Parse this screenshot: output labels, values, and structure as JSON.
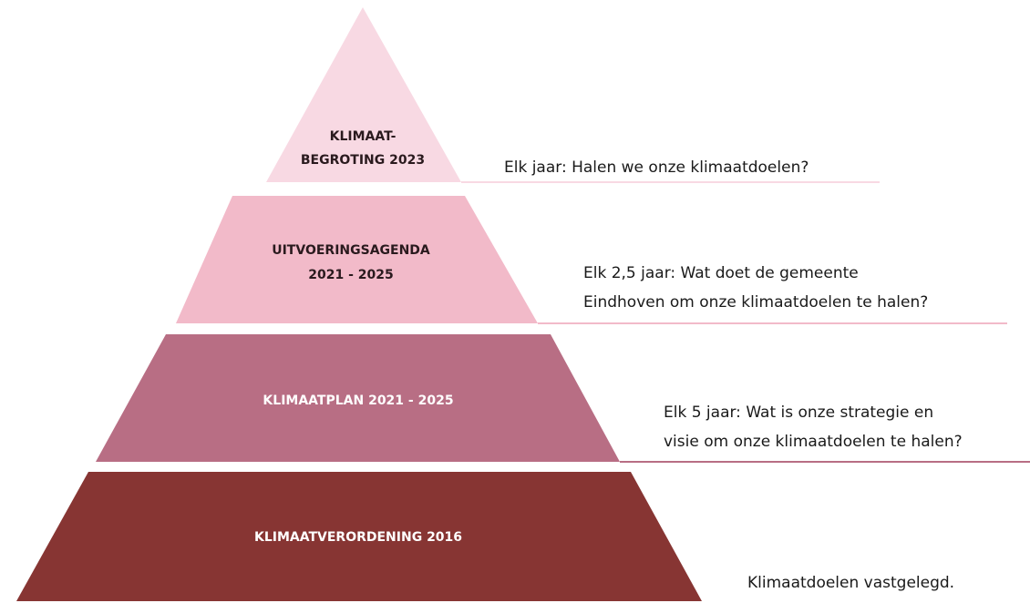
{
  "layers": [
    {
      "label": [
        "KLIMAAT-",
        "BEGROTING 2023"
      ],
      "description": [
        "Elk jaar: Halen we onze klimaatdoelen?"
      ]
    },
    {
      "label": [
        "UITVOERINGSAGENDA",
        "2021 - 2025"
      ],
      "description": [
        "Elk 2,5 jaar: Wat doet de gemeente",
        "Eindhoven om onze klimaatdoelen te halen?"
      ]
    },
    {
      "label": [
        "KLIMAATPLAN 2021 - 2025"
      ],
      "description": [
        "Elk 5 jaar: Wat is onze strategie en",
        "visie om onze klimaatdoelen te halen?"
      ]
    },
    {
      "label": [
        "KLIMAATVERORDENING 2016"
      ],
      "description": [
        "Klimaatdoelen vastgelegd."
      ]
    }
  ]
}
